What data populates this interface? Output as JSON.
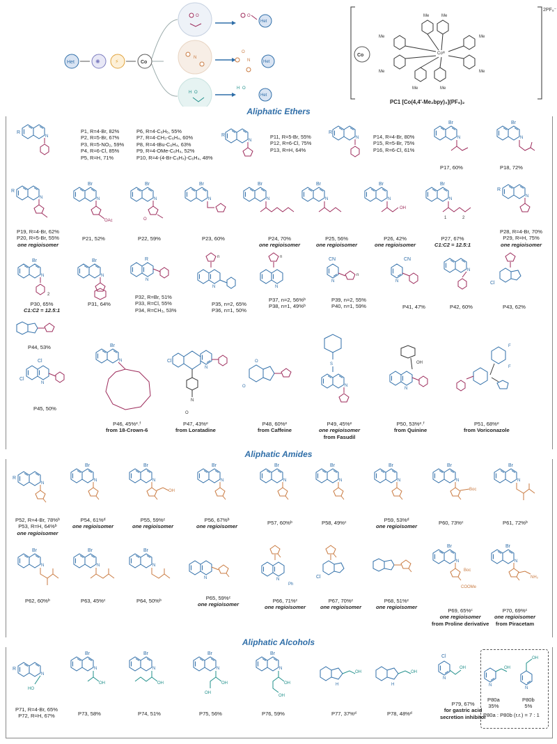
{
  "colors": {
    "blue": "#2f6ea8",
    "ether": "#9c2a5a",
    "amide": "#c97a40",
    "alcohol": "#1f8f8a",
    "het_fill": "#d9e4f3"
  },
  "top": {
    "het_label": "Het",
    "co_label": "Co",
    "ring_het_label": "Het",
    "charge": "2PF₆⁻",
    "catalyst_center": "Coᴵᴵᴵ",
    "me": "Me",
    "pc_caption": "PC1 [Co(4,4′-Me₂bpy)₃](PF₆)₂",
    "h": "H"
  },
  "sections": {
    "ethers": "Aliphatic Ethers",
    "amides": "Aliphatic Amides",
    "alcohols": "Aliphatic Alcohols"
  },
  "ethers": {
    "list_a": [
      "P1, R=4-Br, 82%",
      "P2, R=5-Br, 67%",
      "P3, R=5-NO₂, 59%",
      "P4, R=6-Cl, 85%",
      "P5, R=H, 71%"
    ],
    "list_b": [
      "P6, R=4-C₆H₅, 55%",
      "P7, R=4-CH₃-C₆H₄, 60%",
      "P8, R=4-tBu-C₆H₄, 63%",
      "P9, R=4-OMe-C₆H₄, 52%",
      "P10, R=4-(4-Br-C₆H₄)-C₆H₄, 48%"
    ],
    "list_c": [
      "P11, R=5-Br, 55%",
      "P12, R=6-Cl, 75%",
      "P13, R=H, 64%"
    ],
    "list_d": [
      "P14, R=4-Br, 80%",
      "P15, R=5-Br, 75%",
      "P16, R=6-Cl, 61%"
    ],
    "p17": "P17, 60%",
    "p18": "P18, 72%",
    "p19": "P19, R=4-Br, 62%",
    "p20": "P20, R=5-Br, 55%",
    "p21": "P21, 52%",
    "p22": "P22, 59%",
    "p23": "P23, 60%",
    "p24": "P24, 70%",
    "p25": "P25, 56%",
    "p26": "P26, 42%",
    "p27": "P27, 67%",
    "ratio_27": "C1:C2 = 12.5:1",
    "p28": "P28, R=4-Br, 70%",
    "p29": "P29, R=H, 75%",
    "p30": "P30, 65%",
    "ratio_30": "C1:C2 = 12.5:1",
    "p31": "P31, 64%",
    "list_e": [
      "P32, R=Br, 51%",
      "P33, R=Cl, 55%",
      "P34, R=CH₃, 53%"
    ],
    "p35": "P35, n=2, 65%",
    "p36": "P36, n=1, 50%",
    "p37": "P37, n=2, 56%ᵇ",
    "p38": "P38, n=1, 49%ᵇ",
    "p39": "P39, n=2, 55%",
    "p40": "P40, n=1, 59%",
    "p41": "P41, 47%",
    "p42": "P42, 60%",
    "p43": "P43, 62%",
    "p44": "P44, 53%",
    "p45": "P45, 50%",
    "p46": "P46, 45%ᵉ˒ᶠ",
    "from46": "from 18-Crown-6",
    "p47": "P47, 43%ᵉ",
    "from47": "from Loratadine",
    "p48": "P48, 60%ᵉ",
    "from48": "from Caffeine",
    "p49": "P49, 45%ᵉ",
    "from49": "from Fasudil",
    "p50": "P50, 53%ᵉ˒ᶠ",
    "from50": "from Quinine",
    "p51": "P51, 68%ᵉ",
    "from51": "from Voriconazole",
    "one_regio": "one regioisomer",
    "labels": {
      "r": "R",
      "br": "Br",
      "cl": "Cl",
      "cn": "CN",
      "oac": "OAc",
      "me": "Me",
      "n1": "n",
      "num1": "1",
      "num2": "2",
      "sub2": "2",
      "o": "O",
      "oh": "OH",
      "ph": "Ph",
      "f": "F"
    }
  },
  "amides": {
    "p52": "P52, R=4-Br, 78%ᵇ",
    "p53": "P53, R=H, 64%ᵇ",
    "p54": "P54, 61%ᵈ",
    "p55": "P55, 59%ᶜ",
    "p56": "P56, 67%ᵇ",
    "p57": "P57, 60%ᵇ",
    "p58": "P58, 49%ᶜ",
    "p59": "P59, 53%ᵈ",
    "p60": "P60, 73%ᶜ",
    "p61": "P61, 72%ᵇ",
    "p62": "P62, 60%ᵇ",
    "p63": "P63, 45%ᶜ",
    "p64": "P64, 50%ᵇ",
    "p65": "P65, 59%ᶜ",
    "p66": "P66, 71%ᶜ",
    "p67": "P67, 70%ᶜ",
    "p68": "P68, 51%ᶜ",
    "p69": "P69, 65%ᶜ",
    "from69": "from Proline derivative",
    "p70": "P70, 69%ᶜ",
    "from70": "from Piracetam",
    "one_regio": "one regioisomer",
    "labels": {
      "boc": "Boc",
      "coome": "COOMe",
      "nh2": "NH₂",
      "ph": "Ph",
      "cl": "Cl",
      "br": "Br",
      "r": "R"
    }
  },
  "alcohols": {
    "p71": "P71, R=4-Br, 65%",
    "p72": "P72, R=H, 67%",
    "p73": "P73, 58%",
    "p74": "P74, 51%",
    "p75": "P75, 56%",
    "p76": "P76, 59%",
    "p77": "P77, 37%ᵈ",
    "p78": "P78, 48%ᵈ",
    "p79": "P79, 67%",
    "p79_note1": "for gastric acid",
    "p79_note2": "secretion inhibitor",
    "p80a": "P80a",
    "p80a_y": "35%",
    "p80b": "P80b",
    "p80b_y": "5%",
    "p80_ratio": "P80a : P80b (r.r.) = 7 : 1",
    "labels": {
      "oh": "OH",
      "br": "Br",
      "cl": "Cl",
      "r": "R"
    }
  }
}
